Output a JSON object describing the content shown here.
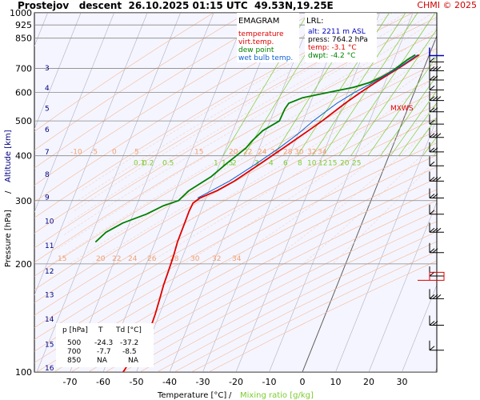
{
  "header": {
    "station": "Prostejov",
    "mode": "descent",
    "datetime": "26.10.2025 01:15 UTC",
    "coords": "49.53N,19.25E",
    "credit": "CHMI © 2025"
  },
  "legend": {
    "title": "EMAGRAM",
    "items": [
      {
        "label": "temperature",
        "color": "#e00000"
      },
      {
        "label": "virt.temp.",
        "color": "#e00000"
      },
      {
        "label": "dew point",
        "color": "#008000"
      },
      {
        "label": "wet bulb temp.",
        "color": "#1060d0"
      }
    ]
  },
  "lrl": {
    "title": "LRL:",
    "alt": "alt: 2211 m ASL",
    "press": "press: 764.2 hPa",
    "temp": "temp: -3.1 °C",
    "dwpt": "dwpt: -4.2 °C"
  },
  "mxws_label": "MXWS",
  "table": {
    "headers": [
      "p [hPa]",
      "T",
      "Td [°C]"
    ],
    "rows": [
      [
        "500",
        "-24.3",
        "-37.2"
      ],
      [
        "700",
        "-7.7",
        "-8.5"
      ],
      [
        "850",
        "NA",
        "NA"
      ]
    ]
  },
  "colors": {
    "temperature": "#e00000",
    "dewpoint": "#008000",
    "wetbulb": "#1060d0",
    "dry_adiabat": "#f4b894",
    "moist_adiabat": "#f0d2c4",
    "mixing_ratio": "#7ccc30",
    "isotherm": "#b0b0c0",
    "altitude_text": "#000080"
  },
  "chart_data": {
    "type": "line",
    "xlabel": "Temperature [°C]",
    "xlabel_sep": "/",
    "xlabel2": "Mixing ratio [g/kg]",
    "ylabel": "Pressure [hPa]",
    "ylabel_sep": "/",
    "ylabel2": "Altitude [km]",
    "xlim": [
      -80,
      40
    ],
    "ylim": [
      1000,
      100
    ],
    "y_scale": "log",
    "x_ticks": [
      -70,
      -60,
      -50,
      -40,
      -30,
      -20,
      -10,
      0,
      10,
      20,
      30
    ],
    "p_ticks": [
      100,
      200,
      300,
      400,
      500,
      600,
      700,
      850,
      925,
      1000
    ],
    "alt_ticks": [
      {
        "km": 3,
        "p": 705
      },
      {
        "km": 4,
        "p": 620
      },
      {
        "km": 5,
        "p": 545
      },
      {
        "km": 6,
        "p": 475
      },
      {
        "km": 7,
        "p": 412
      },
      {
        "km": 8,
        "p": 357
      },
      {
        "km": 9,
        "p": 308
      },
      {
        "km": 10,
        "p": 264
      },
      {
        "km": 11,
        "p": 226
      },
      {
        "km": 12,
        "p": 192
      },
      {
        "km": 13,
        "p": 165
      },
      {
        "km": 14,
        "p": 141
      },
      {
        "km": 15,
        "p": 120
      },
      {
        "km": 16,
        "p": 103
      }
    ],
    "mixing_ratio_labels": [
      "0.1",
      "0.2",
      "0.5",
      "1",
      "1.5",
      "2",
      "3",
      "4",
      "6",
      "8",
      "10",
      "12",
      "15",
      "20",
      "25"
    ],
    "dry_adiabat_labels": [
      "15",
      "20",
      "22",
      "24",
      "26",
      "28",
      "30",
      "32",
      "34"
    ],
    "wet_adiabat_labels": [
      "-10",
      "-5",
      "0",
      "5",
      "15",
      "20",
      "22",
      "24",
      "26",
      "28",
      "30",
      "32",
      "34"
    ],
    "series": [
      {
        "name": "temperature",
        "points": [
          [
            764,
            -3.1
          ],
          [
            720,
            -6.2
          ],
          [
            700,
            -7.7
          ],
          [
            680,
            -9.4
          ],
          [
            640,
            -12.8
          ],
          [
            600,
            -16.2
          ],
          [
            560,
            -19.5
          ],
          [
            500,
            -24.3
          ],
          [
            460,
            -28.3
          ],
          [
            420,
            -32.8
          ],
          [
            380,
            -37.8
          ],
          [
            340,
            -43.5
          ],
          [
            320,
            -47.5
          ],
          [
            305,
            -51.8
          ],
          [
            295,
            -53.3
          ],
          [
            280,
            -53.5
          ],
          [
            260,
            -53.4
          ],
          [
            230,
            -53.3
          ],
          [
            210,
            -52.8
          ],
          [
            190,
            -52.5
          ],
          [
            175,
            -52.3
          ],
          [
            160,
            -51.8
          ],
          [
            145,
            -51.3
          ],
          [
            130,
            -51.0
          ],
          [
            115,
            -52.3
          ],
          [
            100,
            -54.0
          ]
        ]
      },
      {
        "name": "dew point",
        "points": [
          [
            764,
            -4.2
          ],
          [
            740,
            -6.0
          ],
          [
            700,
            -8.5
          ],
          [
            680,
            -10.0
          ],
          [
            660,
            -12.0
          ],
          [
            640,
            -14.5
          ],
          [
            620,
            -19.0
          ],
          [
            600,
            -26.0
          ],
          [
            580,
            -33.0
          ],
          [
            560,
            -36.5
          ],
          [
            540,
            -37.0
          ],
          [
            500,
            -37.2
          ],
          [
            470,
            -41.0
          ],
          [
            440,
            -43.0
          ],
          [
            420,
            -44.0
          ],
          [
            380,
            -48.0
          ],
          [
            350,
            -51.0
          ],
          [
            320,
            -56.0
          ],
          [
            300,
            -58.0
          ],
          [
            290,
            -62.0
          ],
          [
            275,
            -66.0
          ],
          [
            260,
            -72.0
          ],
          [
            245,
            -76.0
          ],
          [
            230,
            -78.0
          ]
        ]
      },
      {
        "name": "wet bulb temp.",
        "points": [
          [
            764,
            -3.5
          ],
          [
            700,
            -8.0
          ],
          [
            640,
            -13.5
          ],
          [
            600,
            -18.0
          ],
          [
            560,
            -22.0
          ],
          [
            500,
            -27.0
          ],
          [
            460,
            -30.0
          ],
          [
            420,
            -34.0
          ],
          [
            380,
            -39.0
          ],
          [
            340,
            -45.0
          ],
          [
            305,
            -52.5
          ]
        ]
      }
    ]
  }
}
